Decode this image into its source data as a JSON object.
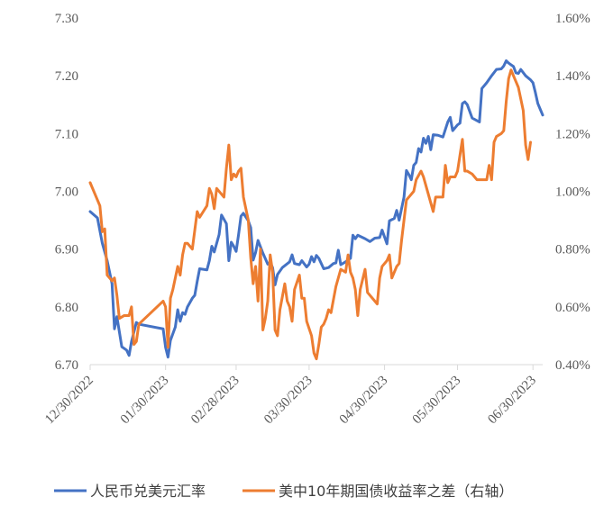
{
  "chart_data": {
    "type": "line",
    "title": "",
    "xlabel": "",
    "ylabel": "",
    "y_left": {
      "lim": [
        6.7,
        7.3
      ],
      "ticks": [
        "6.70",
        "6.80",
        "6.90",
        "7.00",
        "7.10",
        "7.20",
        "7.30"
      ]
    },
    "y_right": {
      "lim": [
        0.4,
        1.6
      ],
      "ticks": [
        "0.40%",
        "0.60%",
        "0.80%",
        "1.00%",
        "1.20%",
        "1.40%",
        "1.60%"
      ]
    },
    "x_range": [
      0,
      186
    ],
    "x_ticks": [
      {
        "label": "12/30/2022",
        "x": 0
      },
      {
        "label": "01/30/2023",
        "x": 31
      },
      {
        "label": "02/28/2023",
        "x": 60
      },
      {
        "label": "03/30/2023",
        "x": 90
      },
      {
        "label": "04/30/2023",
        "x": 121
      },
      {
        "label": "05/30/2023",
        "x": 151
      },
      {
        "label": "06/30/2023",
        "x": 182
      }
    ],
    "series": [
      {
        "name": "人民币兑美元汇率",
        "axis": "left",
        "color": "#4472C4",
        "points": [
          [
            0,
            6.965
          ],
          [
            3,
            6.954
          ],
          [
            5,
            6.91
          ],
          [
            7,
            6.88
          ],
          [
            9,
            6.84
          ],
          [
            10,
            6.762
          ],
          [
            11,
            6.783
          ],
          [
            13,
            6.731
          ],
          [
            15,
            6.725
          ],
          [
            16,
            6.716
          ],
          [
            17,
            6.74
          ],
          [
            19,
            6.773
          ],
          [
            20,
            6.77
          ],
          [
            30,
            6.762
          ],
          [
            31,
            6.73
          ],
          [
            32,
            6.713
          ],
          [
            33,
            6.742
          ],
          [
            35,
            6.765
          ],
          [
            36,
            6.795
          ],
          [
            37,
            6.775
          ],
          [
            38,
            6.79
          ],
          [
            39,
            6.787
          ],
          [
            40,
            6.8
          ],
          [
            42,
            6.815
          ],
          [
            43,
            6.82
          ],
          [
            44,
            6.844
          ],
          [
            45,
            6.866
          ],
          [
            48,
            6.864
          ],
          [
            49,
            6.88
          ],
          [
            50,
            6.905
          ],
          [
            51,
            6.895
          ],
          [
            53,
            6.925
          ],
          [
            54,
            6.959
          ],
          [
            56,
            6.944
          ],
          [
            57,
            6.88
          ],
          [
            58,
            6.912
          ],
          [
            59,
            6.905
          ],
          [
            60,
            6.896
          ],
          [
            61,
            6.925
          ],
          [
            62,
            6.957
          ],
          [
            63,
            6.962
          ],
          [
            65,
            6.949
          ],
          [
            66,
            6.937
          ],
          [
            67,
            6.881
          ],
          [
            68,
            6.894
          ],
          [
            69,
            6.915
          ],
          [
            71,
            6.893
          ],
          [
            73,
            6.874
          ],
          [
            74,
            6.877
          ],
          [
            75,
            6.868
          ],
          [
            76,
            6.838
          ],
          [
            77,
            6.856
          ],
          [
            79,
            6.868
          ],
          [
            82,
            6.878
          ],
          [
            83,
            6.89
          ],
          [
            84,
            6.875
          ],
          [
            86,
            6.873
          ],
          [
            87,
            6.88
          ],
          [
            89,
            6.869
          ],
          [
            90,
            6.874
          ],
          [
            91,
            6.887
          ],
          [
            92,
            6.878
          ],
          [
            93,
            6.889
          ],
          [
            94,
            6.884
          ],
          [
            96,
            6.866
          ],
          [
            98,
            6.868
          ],
          [
            100,
            6.875
          ],
          [
            101,
            6.876
          ],
          [
            102,
            6.898
          ],
          [
            103,
            6.873
          ],
          [
            105,
            6.878
          ],
          [
            107,
            6.884
          ],
          [
            108,
            6.924
          ],
          [
            109,
            6.918
          ],
          [
            110,
            6.924
          ],
          [
            113,
            6.918
          ],
          [
            115,
            6.913
          ],
          [
            117,
            6.919
          ],
          [
            119,
            6.92
          ],
          [
            120,
            6.933
          ],
          [
            122,
            6.909
          ],
          [
            123,
            6.949
          ],
          [
            125,
            6.953
          ],
          [
            126,
            6.967
          ],
          [
            127,
            6.95
          ],
          [
            129,
            6.99
          ],
          [
            130,
            7.036
          ],
          [
            131,
            7.029
          ],
          [
            132,
            7.02
          ],
          [
            133,
            7.045
          ],
          [
            134,
            7.05
          ],
          [
            135,
            7.074
          ],
          [
            136,
            7.068
          ],
          [
            137,
            7.092
          ],
          [
            138,
            7.083
          ],
          [
            139,
            7.095
          ],
          [
            140,
            7.072
          ],
          [
            141,
            7.098
          ],
          [
            143,
            7.097
          ],
          [
            145,
            7.094
          ],
          [
            146,
            7.107
          ],
          [
            147,
            7.12
          ],
          [
            148,
            7.128
          ],
          [
            149,
            7.105
          ],
          [
            151,
            7.115
          ],
          [
            152,
            7.118
          ],
          [
            153,
            7.152
          ],
          [
            154,
            7.155
          ],
          [
            155,
            7.15
          ],
          [
            157,
            7.127
          ],
          [
            160,
            7.12
          ],
          [
            161,
            7.178
          ],
          [
            163,
            7.188
          ],
          [
            165,
            7.2
          ],
          [
            167,
            7.211
          ],
          [
            169,
            7.212
          ],
          [
            170,
            7.217
          ],
          [
            171,
            7.226
          ],
          [
            172,
            7.222
          ],
          [
            173,
            7.219
          ],
          [
            174,
            7.216
          ],
          [
            175,
            7.205
          ],
          [
            176,
            7.204
          ],
          [
            177,
            7.211
          ],
          [
            179,
            7.2
          ],
          [
            181,
            7.193
          ],
          [
            182,
            7.188
          ],
          [
            183,
            7.171
          ],
          [
            184,
            7.152
          ],
          [
            185,
            7.142
          ],
          [
            186,
            7.132
          ]
        ]
      },
      {
        "name": "美中10年期国债收益率之差（右轴）",
        "axis": "right",
        "color": "#ED7D31",
        "points": [
          [
            0,
            1.03
          ],
          [
            2,
            0.99
          ],
          [
            4,
            0.95
          ],
          [
            5,
            0.86
          ],
          [
            6,
            0.87
          ],
          [
            7,
            0.71
          ],
          [
            9,
            0.69
          ],
          [
            10,
            0.7
          ],
          [
            11,
            0.64
          ],
          [
            12,
            0.56
          ],
          [
            14,
            0.57
          ],
          [
            16,
            0.57
          ],
          [
            17,
            0.6
          ],
          [
            18,
            0.47
          ],
          [
            19,
            0.48
          ],
          [
            20,
            0.54
          ],
          [
            30,
            0.62
          ],
          [
            31,
            0.6
          ],
          [
            32,
            0.46
          ],
          [
            33,
            0.63
          ],
          [
            34,
            0.66
          ],
          [
            36,
            0.74
          ],
          [
            37,
            0.71
          ],
          [
            38,
            0.78
          ],
          [
            39,
            0.82
          ],
          [
            40,
            0.82
          ],
          [
            42,
            0.8
          ],
          [
            44,
            0.93
          ],
          [
            45,
            0.91
          ],
          [
            48,
            0.95
          ],
          [
            49,
            1.01
          ],
          [
            50,
            0.99
          ],
          [
            51,
            0.94
          ],
          [
            52,
            1.01
          ],
          [
            54,
            0.99
          ],
          [
            55,
            0.98
          ],
          [
            56,
            1.08
          ],
          [
            57,
            1.16
          ],
          [
            58,
            1.04
          ],
          [
            59,
            1.06
          ],
          [
            60,
            1.05
          ],
          [
            61,
            1.07
          ],
          [
            62,
            1.08
          ],
          [
            63,
            0.98
          ],
          [
            65,
            0.9
          ],
          [
            66,
            0.77
          ],
          [
            67,
            0.68
          ],
          [
            68,
            0.74
          ],
          [
            69,
            0.62
          ],
          [
            70,
            0.8
          ],
          [
            71,
            0.52
          ],
          [
            72,
            0.56
          ],
          [
            73,
            0.62
          ],
          [
            74,
            0.78
          ],
          [
            75,
            0.72
          ],
          [
            76,
            0.52
          ],
          [
            77,
            0.5
          ],
          [
            78,
            0.59
          ],
          [
            80,
            0.68
          ],
          [
            81,
            0.62
          ],
          [
            82,
            0.6
          ],
          [
            83,
            0.55
          ],
          [
            84,
            0.66
          ],
          [
            86,
            0.71
          ],
          [
            87,
            0.63
          ],
          [
            88,
            0.63
          ],
          [
            89,
            0.55
          ],
          [
            91,
            0.5
          ],
          [
            92,
            0.44
          ],
          [
            93,
            0.42
          ],
          [
            94,
            0.47
          ],
          [
            95,
            0.53
          ],
          [
            96,
            0.54
          ],
          [
            97,
            0.56
          ],
          [
            98,
            0.59
          ],
          [
            99,
            0.58
          ],
          [
            101,
            0.67
          ],
          [
            103,
            0.73
          ],
          [
            105,
            0.72
          ],
          [
            106,
            0.78
          ],
          [
            107,
            0.72
          ],
          [
            108,
            0.7
          ],
          [
            109,
            0.66
          ],
          [
            110,
            0.57
          ],
          [
            111,
            0.66
          ],
          [
            113,
            0.73
          ],
          [
            114,
            0.65
          ],
          [
            118,
            0.61
          ],
          [
            119,
            0.7
          ],
          [
            120,
            0.74
          ],
          [
            122,
            0.76
          ],
          [
            123,
            0.78
          ],
          [
            124,
            0.7
          ],
          [
            126,
            0.74
          ],
          [
            127,
            0.75
          ],
          [
            128,
            0.83
          ],
          [
            130,
            0.97
          ],
          [
            131,
            0.98
          ],
          [
            133,
            1.0
          ],
          [
            134,
            1.04
          ],
          [
            136,
            1.07
          ],
          [
            137,
            1.05
          ],
          [
            139,
            0.99
          ],
          [
            140,
            0.96
          ],
          [
            141,
            0.93
          ],
          [
            142,
            0.98
          ],
          [
            144,
            0.98
          ],
          [
            145,
            0.98
          ],
          [
            146,
            1.09
          ],
          [
            147,
            1.03
          ],
          [
            148,
            1.05
          ],
          [
            149,
            1.05
          ],
          [
            150,
            1.05
          ],
          [
            151,
            1.07
          ],
          [
            153,
            1.18
          ],
          [
            154,
            1.07
          ],
          [
            155,
            1.07
          ],
          [
            157,
            1.06
          ],
          [
            159,
            1.04
          ],
          [
            163,
            1.04
          ],
          [
            164,
            1.09
          ],
          [
            165,
            1.04
          ],
          [
            166,
            1.17
          ],
          [
            167,
            1.19
          ],
          [
            169,
            1.2
          ],
          [
            170,
            1.21
          ],
          [
            171,
            1.31
          ],
          [
            172,
            1.39
          ],
          [
            173,
            1.42
          ],
          [
            174,
            1.4
          ],
          [
            175,
            1.38
          ],
          [
            176,
            1.36
          ],
          [
            177,
            1.32
          ],
          [
            178,
            1.28
          ],
          [
            179,
            1.16
          ],
          [
            180,
            1.11
          ],
          [
            181,
            1.17
          ]
        ]
      }
    ],
    "legend": {
      "position": "bottom"
    },
    "grid": false
  }
}
